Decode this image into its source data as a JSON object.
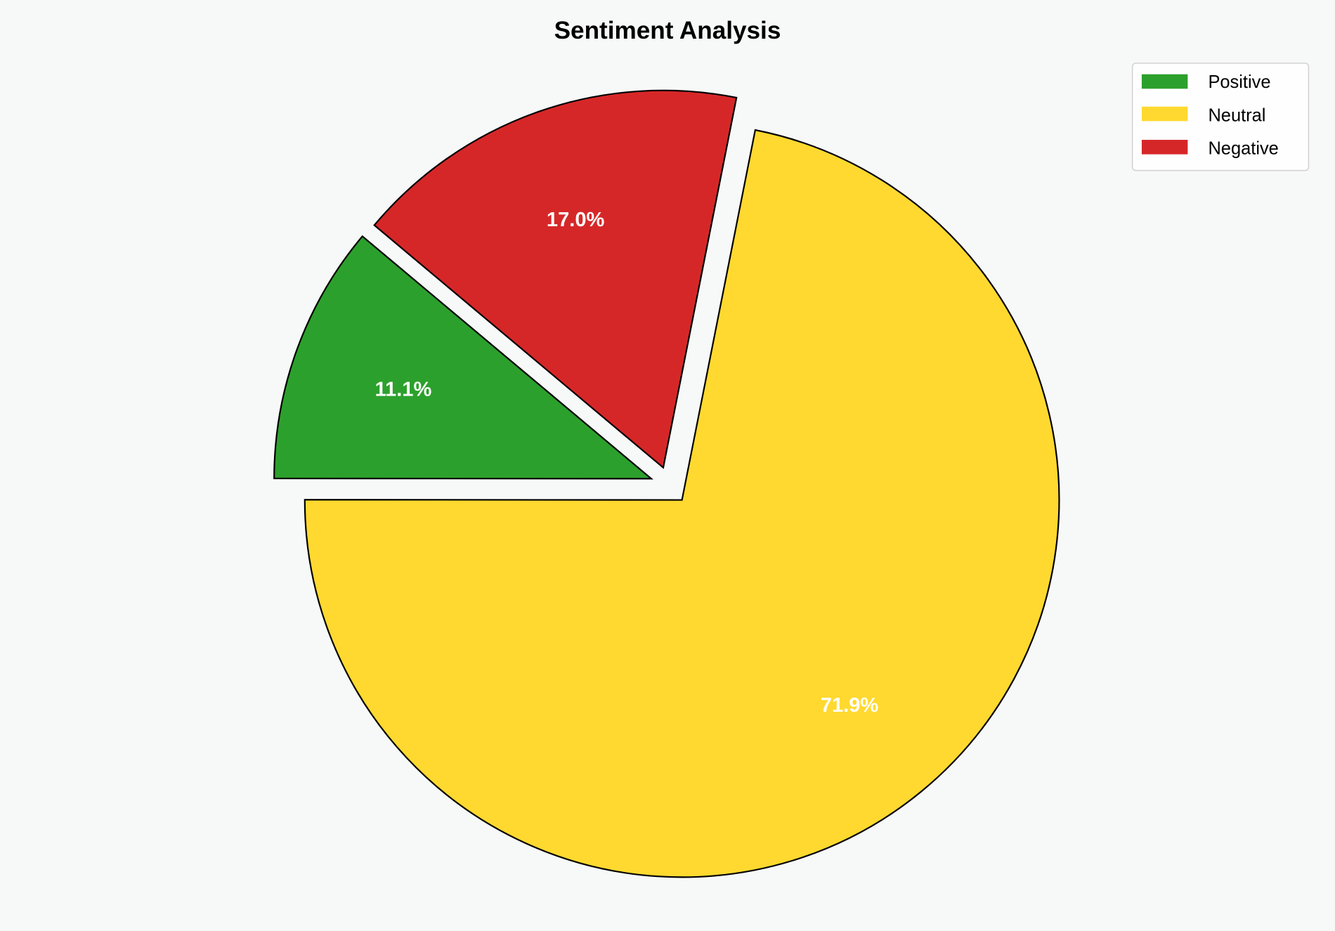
{
  "chart_data": {
    "type": "pie",
    "title": "Sentiment Analysis",
    "categories": [
      "Positive",
      "Neutral",
      "Negative"
    ],
    "values": [
      11.1,
      71.9,
      17.0
    ],
    "labels": [
      "11.1%",
      "71.9%",
      "17.0%"
    ],
    "colors": [
      "#2ca02c",
      "#ffd92f",
      "#d62728"
    ],
    "exploded": [
      "Positive",
      "Negative"
    ],
    "start_angle_deg": 140,
    "direction": "counterclockwise",
    "legend_position": "top-right",
    "edge_color": "#000000",
    "background": "#f7f8f8"
  }
}
